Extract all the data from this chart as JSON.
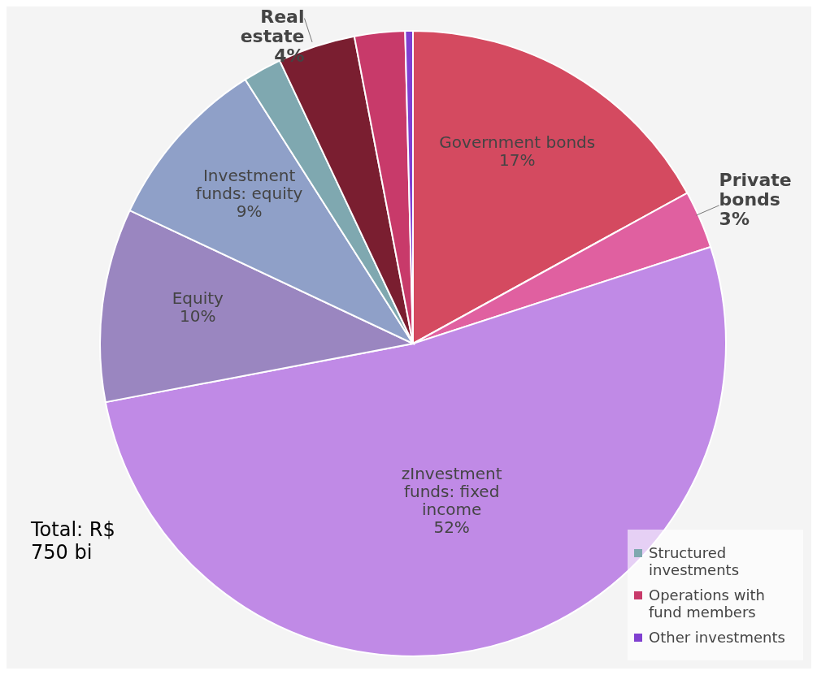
{
  "chart_data": {
    "type": "pie",
    "categories": [
      "Government bonds",
      "Private bonds",
      "zInvestment funds: fixed income",
      "Equity",
      "Investment funds: equity",
      "Structured investments",
      "Real estate",
      "Operations with fund members",
      "Other investments"
    ],
    "values": [
      17,
      3,
      52,
      10,
      9,
      2,
      4,
      2.6,
      0.4
    ],
    "value_labels": [
      "17%",
      "3%",
      "52%",
      "10%",
      "9%",
      null,
      "4%",
      null,
      null
    ],
    "colors": [
      "#d44a60",
      "#e060a0",
      "#c08ae6",
      "#9a86c0",
      "#8fa0c8",
      "#7fa8b0",
      "#7a1e30",
      "#c83a6a",
      "#8040d0"
    ],
    "legend": "bottom right",
    "annotations": [
      "Total: R$ 750 bi"
    ]
  }
}
